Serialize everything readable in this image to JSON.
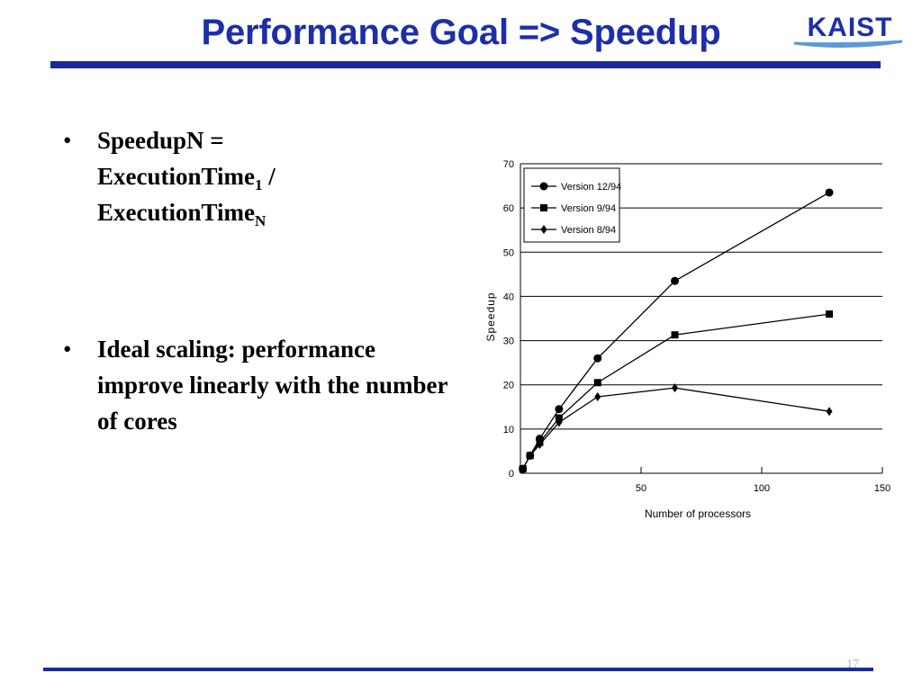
{
  "slide": {
    "title": "Performance Goal => Speedup",
    "logo_text": "KAIST",
    "page_number": "17",
    "colors": {
      "accent": "#1c2fa8",
      "rule": "#1a2a9c",
      "logo_swoosh": "#5b9bd5"
    }
  },
  "bullets": [
    {
      "line1": "SpeedupN =",
      "line2_main": "ExecutionTime",
      "line2_sub": "1",
      "line2_tail": " /",
      "line3_main": "ExecutionTime",
      "line3_sub": "N"
    },
    {
      "text": "Ideal scaling: performance improve linearly with the number of cores"
    }
  ],
  "chart_data": {
    "type": "line",
    "xlabel": "Number of processors",
    "ylabel": "Speedup",
    "xlim": [
      0,
      150
    ],
    "ylim": [
      0,
      70
    ],
    "xticks": [
      50,
      100,
      150
    ],
    "yticks": [
      0,
      10,
      20,
      30,
      40,
      50,
      60,
      70
    ],
    "grid": "horizontal",
    "legend_position": "top-left",
    "series": [
      {
        "name": "Version 12/94",
        "marker": "circle",
        "x": [
          1,
          4,
          8,
          16,
          32,
          64,
          128
        ],
        "y": [
          1,
          4,
          7.8,
          14.5,
          26,
          43.5,
          63.5
        ]
      },
      {
        "name": "Version 9/94",
        "marker": "square",
        "x": [
          1,
          4,
          8,
          16,
          32,
          64,
          128
        ],
        "y": [
          1,
          4,
          7,
          12.5,
          20.5,
          31.3,
          36
        ]
      },
      {
        "name": "Version 8/94",
        "marker": "diamond",
        "x": [
          1,
          4,
          8,
          16,
          32,
          64,
          128
        ],
        "y": [
          1,
          4,
          6.5,
          11.5,
          17.3,
          19.3,
          14
        ]
      }
    ]
  }
}
